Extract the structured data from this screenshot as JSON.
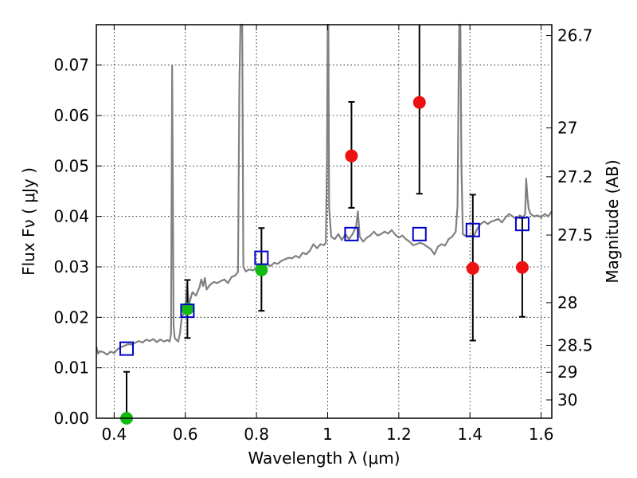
{
  "chart_data": {
    "type": "scatter",
    "xlabel": "Wavelength  λ (μm)",
    "ylabel": "Flux  Fν  ( μJy )",
    "ylabel_right": "Magnitude (AB)",
    "xlim": [
      0.35,
      1.63
    ],
    "ylim": [
      0,
      0.078
    ],
    "x_ticks": [
      0.4,
      0.6,
      0.8,
      1.0,
      1.2,
      1.4,
      1.6
    ],
    "x_tick_labels": [
      "0.4",
      "0.6",
      "0.8",
      "1",
      "1.2",
      "1.4",
      "1.6"
    ],
    "y_ticks": [
      0.0,
      0.01,
      0.02,
      0.03,
      0.04,
      0.05,
      0.06,
      0.07
    ],
    "y_tick_labels": [
      "0.00",
      "0.01",
      "0.02",
      "0.03",
      "0.04",
      "0.05",
      "0.06",
      "0.07"
    ],
    "right_ticks": [
      {
        "mag": 26.7,
        "label": "26.7"
      },
      {
        "mag": 27.0,
        "label": "27"
      },
      {
        "mag": 27.2,
        "label": "27.2"
      },
      {
        "mag": 27.5,
        "label": "27.5"
      },
      {
        "mag": 28.0,
        "label": "28"
      },
      {
        "mag": 28.5,
        "label": "28.5"
      },
      {
        "mag": 29.0,
        "label": "29"
      },
      {
        "mag": 30.0,
        "label": "30"
      }
    ],
    "grid": true,
    "colors": {
      "model": "#808080",
      "red_points": "#ee1111",
      "green_points": "#11bb11",
      "squares": "#0000cc",
      "errorbars": "#000000"
    },
    "model_spectrum": [
      [
        0.35,
        0.0142
      ],
      [
        0.355,
        0.0128
      ],
      [
        0.36,
        0.0133
      ],
      [
        0.37,
        0.0131
      ],
      [
        0.38,
        0.0126
      ],
      [
        0.39,
        0.0132
      ],
      [
        0.4,
        0.0129
      ],
      [
        0.41,
        0.0137
      ],
      [
        0.42,
        0.0141
      ],
      [
        0.43,
        0.0144
      ],
      [
        0.44,
        0.0147
      ],
      [
        0.45,
        0.0146
      ],
      [
        0.46,
        0.015
      ],
      [
        0.47,
        0.0153
      ],
      [
        0.48,
        0.015
      ],
      [
        0.49,
        0.0156
      ],
      [
        0.5,
        0.0153
      ],
      [
        0.51,
        0.0157
      ],
      [
        0.52,
        0.0151
      ],
      [
        0.53,
        0.0156
      ],
      [
        0.54,
        0.0152
      ],
      [
        0.55,
        0.0155
      ],
      [
        0.556,
        0.0152
      ],
      [
        0.56,
        0.0168
      ],
      [
        0.563,
        0.07
      ],
      [
        0.567,
        0.0185
      ],
      [
        0.57,
        0.016
      ],
      [
        0.575,
        0.0155
      ],
      [
        0.58,
        0.0152
      ],
      [
        0.585,
        0.0168
      ],
      [
        0.59,
        0.02
      ],
      [
        0.595,
        0.0208
      ],
      [
        0.6,
        0.0215
      ],
      [
        0.605,
        0.0265
      ],
      [
        0.61,
        0.0225
      ],
      [
        0.62,
        0.025
      ],
      [
        0.63,
        0.0243
      ],
      [
        0.64,
        0.026
      ],
      [
        0.645,
        0.0275
      ],
      [
        0.65,
        0.0262
      ],
      [
        0.655,
        0.0278
      ],
      [
        0.66,
        0.0255
      ],
      [
        0.67,
        0.0265
      ],
      [
        0.68,
        0.027
      ],
      [
        0.69,
        0.0268
      ],
      [
        0.7,
        0.0272
      ],
      [
        0.71,
        0.0275
      ],
      [
        0.72,
        0.0268
      ],
      [
        0.73,
        0.028
      ],
      [
        0.74,
        0.0283
      ],
      [
        0.748,
        0.029
      ],
      [
        0.752,
        0.066
      ],
      [
        0.755,
        0.08
      ],
      [
        0.757,
        0.08
      ],
      [
        0.76,
        0.078
      ],
      [
        0.763,
        0.03
      ],
      [
        0.77,
        0.0291
      ],
      [
        0.78,
        0.0295
      ],
      [
        0.79,
        0.0293
      ],
      [
        0.8,
        0.0298
      ],
      [
        0.81,
        0.03
      ],
      [
        0.82,
        0.0302
      ],
      [
        0.83,
        0.0305
      ],
      [
        0.84,
        0.0302
      ],
      [
        0.85,
        0.0308
      ],
      [
        0.86,
        0.0306
      ],
      [
        0.87,
        0.0312
      ],
      [
        0.88,
        0.0315
      ],
      [
        0.89,
        0.0318
      ],
      [
        0.9,
        0.0317
      ],
      [
        0.91,
        0.0322
      ],
      [
        0.92,
        0.0318
      ],
      [
        0.93,
        0.0328
      ],
      [
        0.94,
        0.0325
      ],
      [
        0.95,
        0.0332
      ],
      [
        0.96,
        0.0345
      ],
      [
        0.97,
        0.0337
      ],
      [
        0.98,
        0.0345
      ],
      [
        0.99,
        0.0343
      ],
      [
        0.995,
        0.0348
      ],
      [
        0.998,
        0.05
      ],
      [
        1.0,
        0.08
      ],
      [
        1.002,
        0.08
      ],
      [
        1.004,
        0.042
      ],
      [
        1.01,
        0.036
      ],
      [
        1.02,
        0.0355
      ],
      [
        1.03,
        0.0365
      ],
      [
        1.04,
        0.0353
      ],
      [
        1.05,
        0.0365
      ],
      [
        1.06,
        0.0355
      ],
      [
        1.07,
        0.0365
      ],
      [
        1.08,
        0.038
      ],
      [
        1.085,
        0.041
      ],
      [
        1.09,
        0.036
      ],
      [
        1.1,
        0.035
      ],
      [
        1.11,
        0.0358
      ],
      [
        1.12,
        0.0362
      ],
      [
        1.13,
        0.037
      ],
      [
        1.14,
        0.0362
      ],
      [
        1.15,
        0.0365
      ],
      [
        1.16,
        0.037
      ],
      [
        1.17,
        0.0366
      ],
      [
        1.18,
        0.0373
      ],
      [
        1.19,
        0.0364
      ],
      [
        1.2,
        0.0358
      ],
      [
        1.21,
        0.0362
      ],
      [
        1.22,
        0.0355
      ],
      [
        1.23,
        0.035
      ],
      [
        1.24,
        0.0343
      ],
      [
        1.25,
        0.0345
      ],
      [
        1.26,
        0.0348
      ],
      [
        1.27,
        0.0345
      ],
      [
        1.28,
        0.034
      ],
      [
        1.29,
        0.0335
      ],
      [
        1.3,
        0.0325
      ],
      [
        1.31,
        0.034
      ],
      [
        1.32,
        0.0345
      ],
      [
        1.33,
        0.0342
      ],
      [
        1.34,
        0.0355
      ],
      [
        1.35,
        0.036
      ],
      [
        1.36,
        0.037
      ],
      [
        1.365,
        0.042
      ],
      [
        1.368,
        0.065
      ],
      [
        1.37,
        0.08
      ],
      [
        1.373,
        0.08
      ],
      [
        1.376,
        0.05
      ],
      [
        1.38,
        0.0365
      ],
      [
        1.39,
        0.036
      ],
      [
        1.4,
        0.0362
      ],
      [
        1.41,
        0.036
      ],
      [
        1.42,
        0.0375
      ],
      [
        1.43,
        0.0385
      ],
      [
        1.44,
        0.039
      ],
      [
        1.45,
        0.0385
      ],
      [
        1.46,
        0.039
      ],
      [
        1.47,
        0.0392
      ],
      [
        1.48,
        0.0395
      ],
      [
        1.49,
        0.0388
      ],
      [
        1.5,
        0.0398
      ],
      [
        1.51,
        0.0405
      ],
      [
        1.52,
        0.04
      ],
      [
        1.53,
        0.0395
      ],
      [
        1.54,
        0.0402
      ],
      [
        1.545,
        0.04
      ],
      [
        1.55,
        0.0398
      ],
      [
        1.555,
        0.0405
      ],
      [
        1.558,
        0.0475
      ],
      [
        1.562,
        0.0435
      ],
      [
        1.565,
        0.0415
      ],
      [
        1.57,
        0.0405
      ],
      [
        1.58,
        0.04
      ],
      [
        1.59,
        0.0402
      ],
      [
        1.6,
        0.0398
      ],
      [
        1.61,
        0.0405
      ],
      [
        1.62,
        0.04
      ],
      [
        1.63,
        0.041
      ]
    ],
    "squares": [
      {
        "x": 0.435,
        "y": 0.0138
      },
      {
        "x": 0.606,
        "y": 0.0213
      },
      {
        "x": 0.814,
        "y": 0.0318
      },
      {
        "x": 1.067,
        "y": 0.0365
      },
      {
        "x": 1.258,
        "y": 0.0365
      },
      {
        "x": 1.408,
        "y": 0.0373
      },
      {
        "x": 1.547,
        "y": 0.0385
      }
    ],
    "green_points": [
      {
        "x": 0.435,
        "y": 0.0,
        "err_low": 0.0,
        "err_high": 0.0092
      },
      {
        "x": 0.606,
        "y": 0.0217,
        "err_low": 0.0058,
        "err_high": 0.0057
      },
      {
        "x": 0.814,
        "y": 0.0294,
        "err_low": 0.0081,
        "err_high": 0.0083
      }
    ],
    "red_points": [
      {
        "x": 1.067,
        "y": 0.052,
        "err_low": 0.0103,
        "err_high": 0.0107
      },
      {
        "x": 1.258,
        "y": 0.0626,
        "err_low": 0.0181,
        "err_high": 0.0174
      },
      {
        "x": 1.408,
        "y": 0.0297,
        "err_low": 0.0143,
        "err_high": 0.0146
      },
      {
        "x": 1.547,
        "y": 0.0299,
        "err_low": 0.0098,
        "err_high": 0.0098
      }
    ]
  }
}
